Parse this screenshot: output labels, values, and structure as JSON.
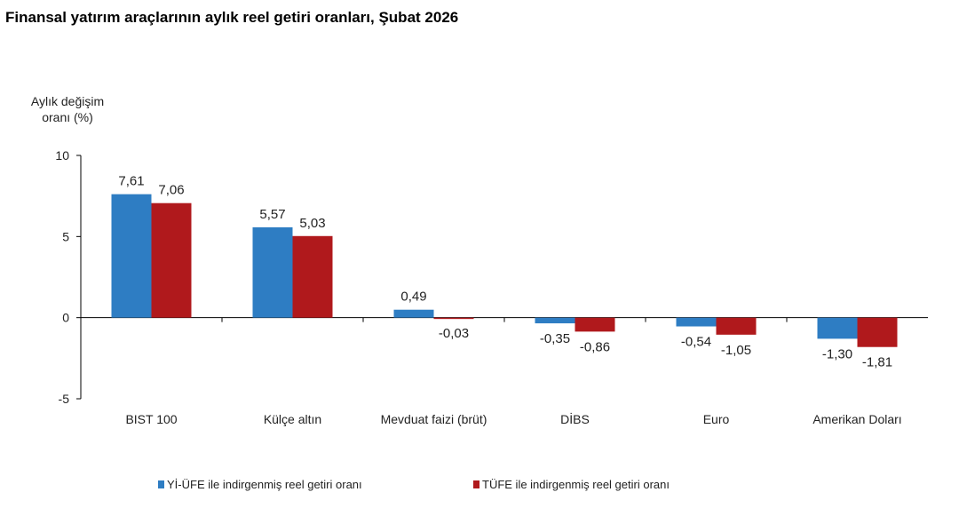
{
  "chart_data": {
    "type": "bar",
    "title": "Finansal yatırım araçlarının aylık reel getiri oranları, Şubat 2026",
    "ylabel_lines": [
      "Aylık değişim",
      "oranı (%)"
    ],
    "categories": [
      "BIST 100",
      "Külçe altın",
      "Mevduat faizi (brüt)",
      "DİBS",
      "Euro",
      "Amerikan Doları"
    ],
    "series": [
      {
        "name": "Yİ-ÜFE ile indirgenmiş reel getiri oranı",
        "color": "#2e7dc3",
        "values": [
          7.61,
          5.57,
          0.49,
          -0.35,
          -0.54,
          -1.3
        ],
        "labels": [
          "7,61",
          "5,57",
          "0,49",
          "-0,35",
          "-0,54",
          "-1,30"
        ]
      },
      {
        "name": "TÜFE ile indirgenmiş reel getiri oranı",
        "color": "#b0191c",
        "values": [
          7.06,
          5.03,
          -0.03,
          -0.86,
          -1.05,
          -1.81
        ],
        "labels": [
          "7,06",
          "5,03",
          "-0,03",
          "-0,86",
          "-1,05",
          "-1,81"
        ]
      }
    ],
    "ylim": [
      -5,
      10
    ],
    "yticks": [
      10,
      5,
      0,
      -5
    ],
    "grid": false,
    "legend": "bottom"
  }
}
